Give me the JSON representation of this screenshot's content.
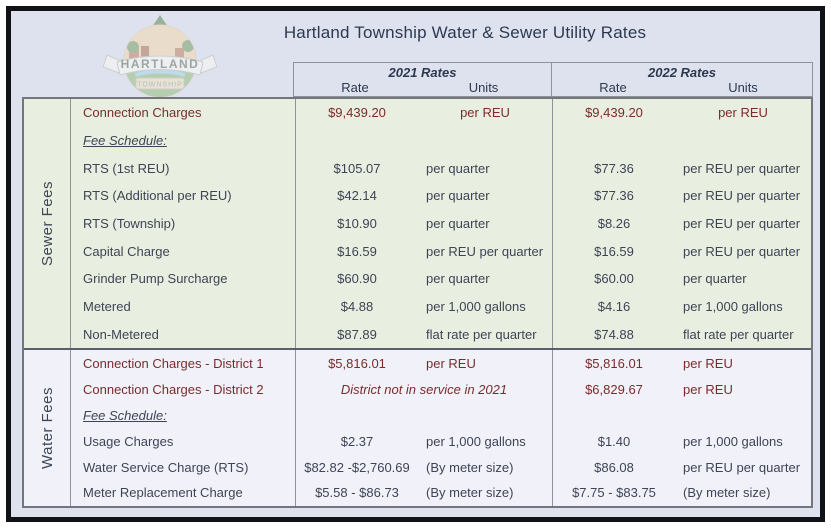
{
  "title": "Hartland Township Water & Sewer Utility Rates",
  "logo": {
    "banner": "HARTLAND",
    "plaque": "TOWNSHIP"
  },
  "header": {
    "y2021": "2021 Rates",
    "y2022": "2022 Rates",
    "rate": "Rate",
    "units": "Units"
  },
  "colors": {
    "maroon": "#7b2b2b",
    "navy": "#2c3950",
    "text": "#3d4455",
    "page_bg": "#dee2ee",
    "sewer_bg": "#e9efe0",
    "water_bg": "#f1f2f9"
  },
  "sections": [
    {
      "label": "Sewer Fees",
      "rows": [
        {
          "name": "Connection Charges",
          "red": true,
          "center_units": true,
          "r21": "$9,439.20",
          "u21": "per REU",
          "r22": "$9,439.20",
          "u22": "per REU"
        },
        {
          "name": "Fee Schedule:",
          "schedule": true
        },
        {
          "name": "RTS (1st REU)",
          "r21": "$105.07",
          "u21": "per quarter",
          "r22": "$77.36",
          "u22": "per REU per quarter"
        },
        {
          "name": "RTS (Additional per REU)",
          "r21": "$42.14",
          "u21": "per quarter",
          "r22": "$77.36",
          "u22": "per REU per quarter"
        },
        {
          "name": "RTS (Township)",
          "r21": "$10.90",
          "u21": "per quarter",
          "r22": "$8.26",
          "u22": "per REU per quarter"
        },
        {
          "name": "Capital Charge",
          "r21": "$16.59",
          "u21": "per REU per quarter",
          "r22": "$16.59",
          "u22": "per REU per quarter"
        },
        {
          "name": "Grinder Pump Surcharge",
          "r21": "$60.90",
          "u21": "per quarter",
          "r22": "$60.00",
          "u22": "per quarter"
        },
        {
          "name": "Metered",
          "r21": "$4.88",
          "u21": "per 1,000 gallons",
          "r22": "$4.16",
          "u22": "per 1,000 gallons"
        },
        {
          "name": "Non-Metered",
          "r21": "$87.89",
          "u21": "flat rate per quarter",
          "r22": "$74.88",
          "u22": "flat rate per quarter"
        }
      ]
    },
    {
      "label": "Water Fees",
      "rows": [
        {
          "name": "Connection Charges - District 1",
          "red": true,
          "r21": "$5,816.01",
          "u21": "per REU",
          "r22": "$5,816.01",
          "u22": "per REU"
        },
        {
          "name": "Connection Charges - District 2",
          "red": true,
          "span21": "District not in service in 2021",
          "r22": "$6,829.67",
          "u22": "per REU"
        },
        {
          "name": "Fee Schedule:",
          "schedule": true
        },
        {
          "name": "Usage Charges",
          "r21": "$2.37",
          "u21": "per 1,000 gallons",
          "r22": "$1.40",
          "u22": "per 1,000 gallons"
        },
        {
          "name": "Water Service Charge (RTS)",
          "r21": "$82.82 -$2,760.69",
          "u21": "(By meter size)",
          "r22": "$86.08",
          "u22": "per REU per quarter"
        },
        {
          "name": "Meter Replacement Charge",
          "r21": "$5.58 - $86.73",
          "u21": "(By meter size)",
          "r22": "$7.75 - $83.75",
          "u22": "(By meter size)"
        }
      ]
    }
  ]
}
